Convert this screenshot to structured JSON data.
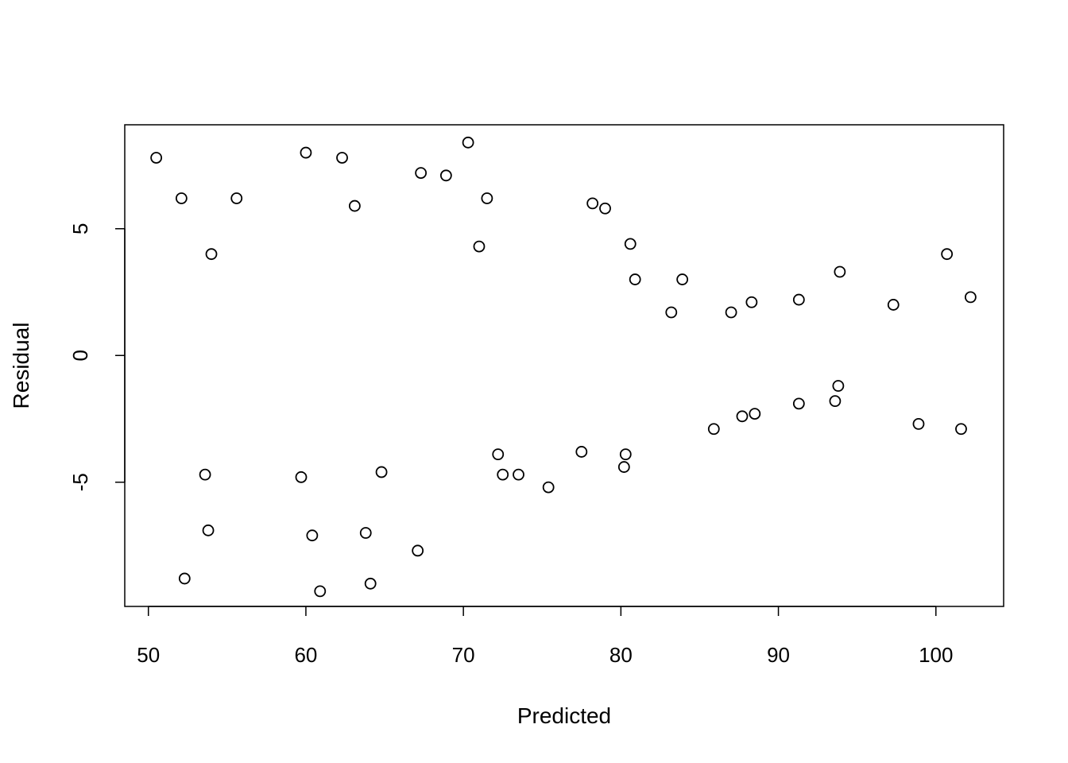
{
  "chart_data": {
    "type": "scatter",
    "title": "",
    "xlabel": "Predicted",
    "ylabel": "Residual",
    "xlim": [
      48.5,
      104.3
    ],
    "ylim": [
      -9.9,
      9.1
    ],
    "x_ticks": [
      50,
      60,
      70,
      80,
      90,
      100
    ],
    "y_ticks": [
      -5,
      0,
      5
    ],
    "marker": "open-circle",
    "grid": false,
    "points": [
      {
        "x": 50.5,
        "y": 7.8
      },
      {
        "x": 52.1,
        "y": 6.2
      },
      {
        "x": 54.0,
        "y": 4.0
      },
      {
        "x": 55.6,
        "y": 6.2
      },
      {
        "x": 60.0,
        "y": 8.0
      },
      {
        "x": 62.3,
        "y": 7.8
      },
      {
        "x": 63.1,
        "y": 5.9
      },
      {
        "x": 67.3,
        "y": 7.2
      },
      {
        "x": 68.9,
        "y": 7.1
      },
      {
        "x": 70.3,
        "y": 8.4
      },
      {
        "x": 71.0,
        "y": 4.3
      },
      {
        "x": 71.5,
        "y": 6.2
      },
      {
        "x": 78.2,
        "y": 6.0
      },
      {
        "x": 79.0,
        "y": 5.8
      },
      {
        "x": 80.6,
        "y": 4.4
      },
      {
        "x": 80.9,
        "y": 3.0
      },
      {
        "x": 83.9,
        "y": 3.0
      },
      {
        "x": 83.2,
        "y": 1.7
      },
      {
        "x": 87.0,
        "y": 1.7
      },
      {
        "x": 88.3,
        "y": 2.1
      },
      {
        "x": 91.3,
        "y": 2.2
      },
      {
        "x": 93.9,
        "y": 3.3
      },
      {
        "x": 97.3,
        "y": 2.0
      },
      {
        "x": 100.7,
        "y": 4.0
      },
      {
        "x": 102.2,
        "y": 2.3
      },
      {
        "x": 52.3,
        "y": -8.8
      },
      {
        "x": 53.6,
        "y": -4.7
      },
      {
        "x": 53.8,
        "y": -6.9
      },
      {
        "x": 59.7,
        "y": -4.8
      },
      {
        "x": 60.4,
        "y": -7.1
      },
      {
        "x": 60.9,
        "y": -9.3
      },
      {
        "x": 63.8,
        "y": -7.0
      },
      {
        "x": 64.1,
        "y": -9.0
      },
      {
        "x": 64.8,
        "y": -4.6
      },
      {
        "x": 67.1,
        "y": -7.7
      },
      {
        "x": 72.2,
        "y": -3.9
      },
      {
        "x": 72.5,
        "y": -4.7
      },
      {
        "x": 73.5,
        "y": -4.7
      },
      {
        "x": 75.4,
        "y": -5.2
      },
      {
        "x": 77.5,
        "y": -3.8
      },
      {
        "x": 80.3,
        "y": -3.9
      },
      {
        "x": 80.2,
        "y": -4.4
      },
      {
        "x": 85.9,
        "y": -2.9
      },
      {
        "x": 87.7,
        "y": -2.4
      },
      {
        "x": 88.5,
        "y": -2.3
      },
      {
        "x": 91.3,
        "y": -1.9
      },
      {
        "x": 93.6,
        "y": -1.8
      },
      {
        "x": 93.8,
        "y": -1.2
      },
      {
        "x": 98.9,
        "y": -2.7
      },
      {
        "x": 101.6,
        "y": -2.9
      }
    ]
  }
}
